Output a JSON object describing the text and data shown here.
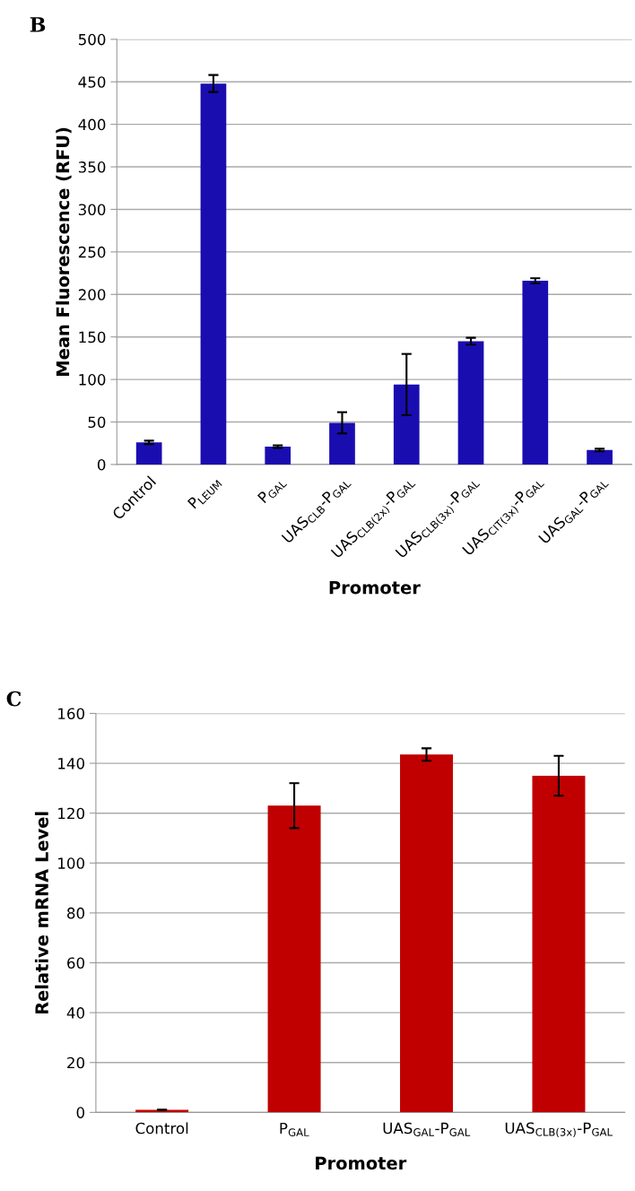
{
  "chart_data": [
    {
      "type": "bar",
      "title": "B",
      "xlabel": "Promoter",
      "ylabel": "Mean Fluorescence (RFU)",
      "categories": [
        "Control",
        "P$_{LEUM}$",
        "P$_{GAL}$",
        "UAS$_{CLB}$-P$_{GAL}$",
        "UAS$_{CLB(2x)}$-P$_{GAL}$",
        "UAS$_{CLB(3x)}$-P$_{GAL}$",
        "UAS$_{CIT(3x)}$-P$_{GAL}$",
        "UAS$_{GAL}$-P$_{GAL}$"
      ],
      "values": [
        26,
        448,
        21,
        49,
        94,
        145,
        216,
        17
      ],
      "errors": [
        2,
        10,
        1.5,
        12.5,
        36,
        4,
        3,
        1.5
      ],
      "color": "#1a0db0",
      "ylim": [
        0,
        500
      ],
      "yticks": [
        0,
        50,
        100,
        150,
        200,
        250,
        300,
        350,
        400,
        450,
        500
      ],
      "grid": "y"
    },
    {
      "type": "bar",
      "title": "C",
      "xlabel": "Promoter",
      "ylabel": "Relative mRNA Level",
      "categories": [
        "Control",
        "P$_{GAL}$",
        "UAS$_{GAL}$-P$_{GAL}$",
        "UAS$_{CLB(3x)}$-P$_{GAL}$"
      ],
      "values": [
        1,
        123,
        143.5,
        135
      ],
      "errors": [
        null,
        9,
        2.5,
        8
      ],
      "color": "#c00000",
      "ylim": [
        0,
        160
      ],
      "yticks": [
        0,
        20,
        40,
        60,
        80,
        100,
        120,
        140,
        160
      ],
      "grid": "y"
    }
  ]
}
